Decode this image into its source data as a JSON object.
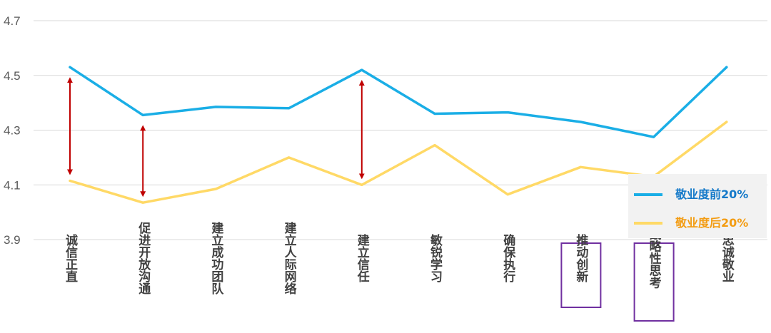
{
  "chart_data": {
    "type": "line",
    "categories": [
      "诚信正直",
      "促进开放沟通",
      "建立成功团队",
      "建立人际网络",
      "建立信任",
      "敏锐学习",
      "确保执行",
      "推动创新",
      "战略性思考",
      "忠诚敬业"
    ],
    "series": [
      {
        "name": "敬业度前20%",
        "color": "#1AAEE6",
        "values": [
          4.53,
          4.355,
          4.385,
          4.38,
          4.52,
          4.36,
          4.365,
          4.33,
          4.275,
          4.53
        ]
      },
      {
        "name": "敬业度后20%",
        "color": "#FFD966",
        "values": [
          4.115,
          4.035,
          4.085,
          4.2,
          4.1,
          4.245,
          4.065,
          4.165,
          4.13,
          4.33
        ]
      }
    ],
    "ylim": [
      3.9,
      4.7
    ],
    "yticks": [
      "4.7",
      "4.5",
      "4.3",
      "4.1",
      "3.9"
    ],
    "grid": true,
    "legend_position": "right",
    "legend_colors": {
      "敬业度前20%": "#1479C9",
      "敬业度后20%": "#F39C12"
    },
    "highlighted_categories": [
      "推动创新",
      "战略性思考"
    ],
    "highlight_color": "#7030A0",
    "gap_arrows": {
      "categories": [
        "诚信正直",
        "促进开放沟通",
        "建立信任"
      ],
      "color": "#C00000"
    }
  }
}
